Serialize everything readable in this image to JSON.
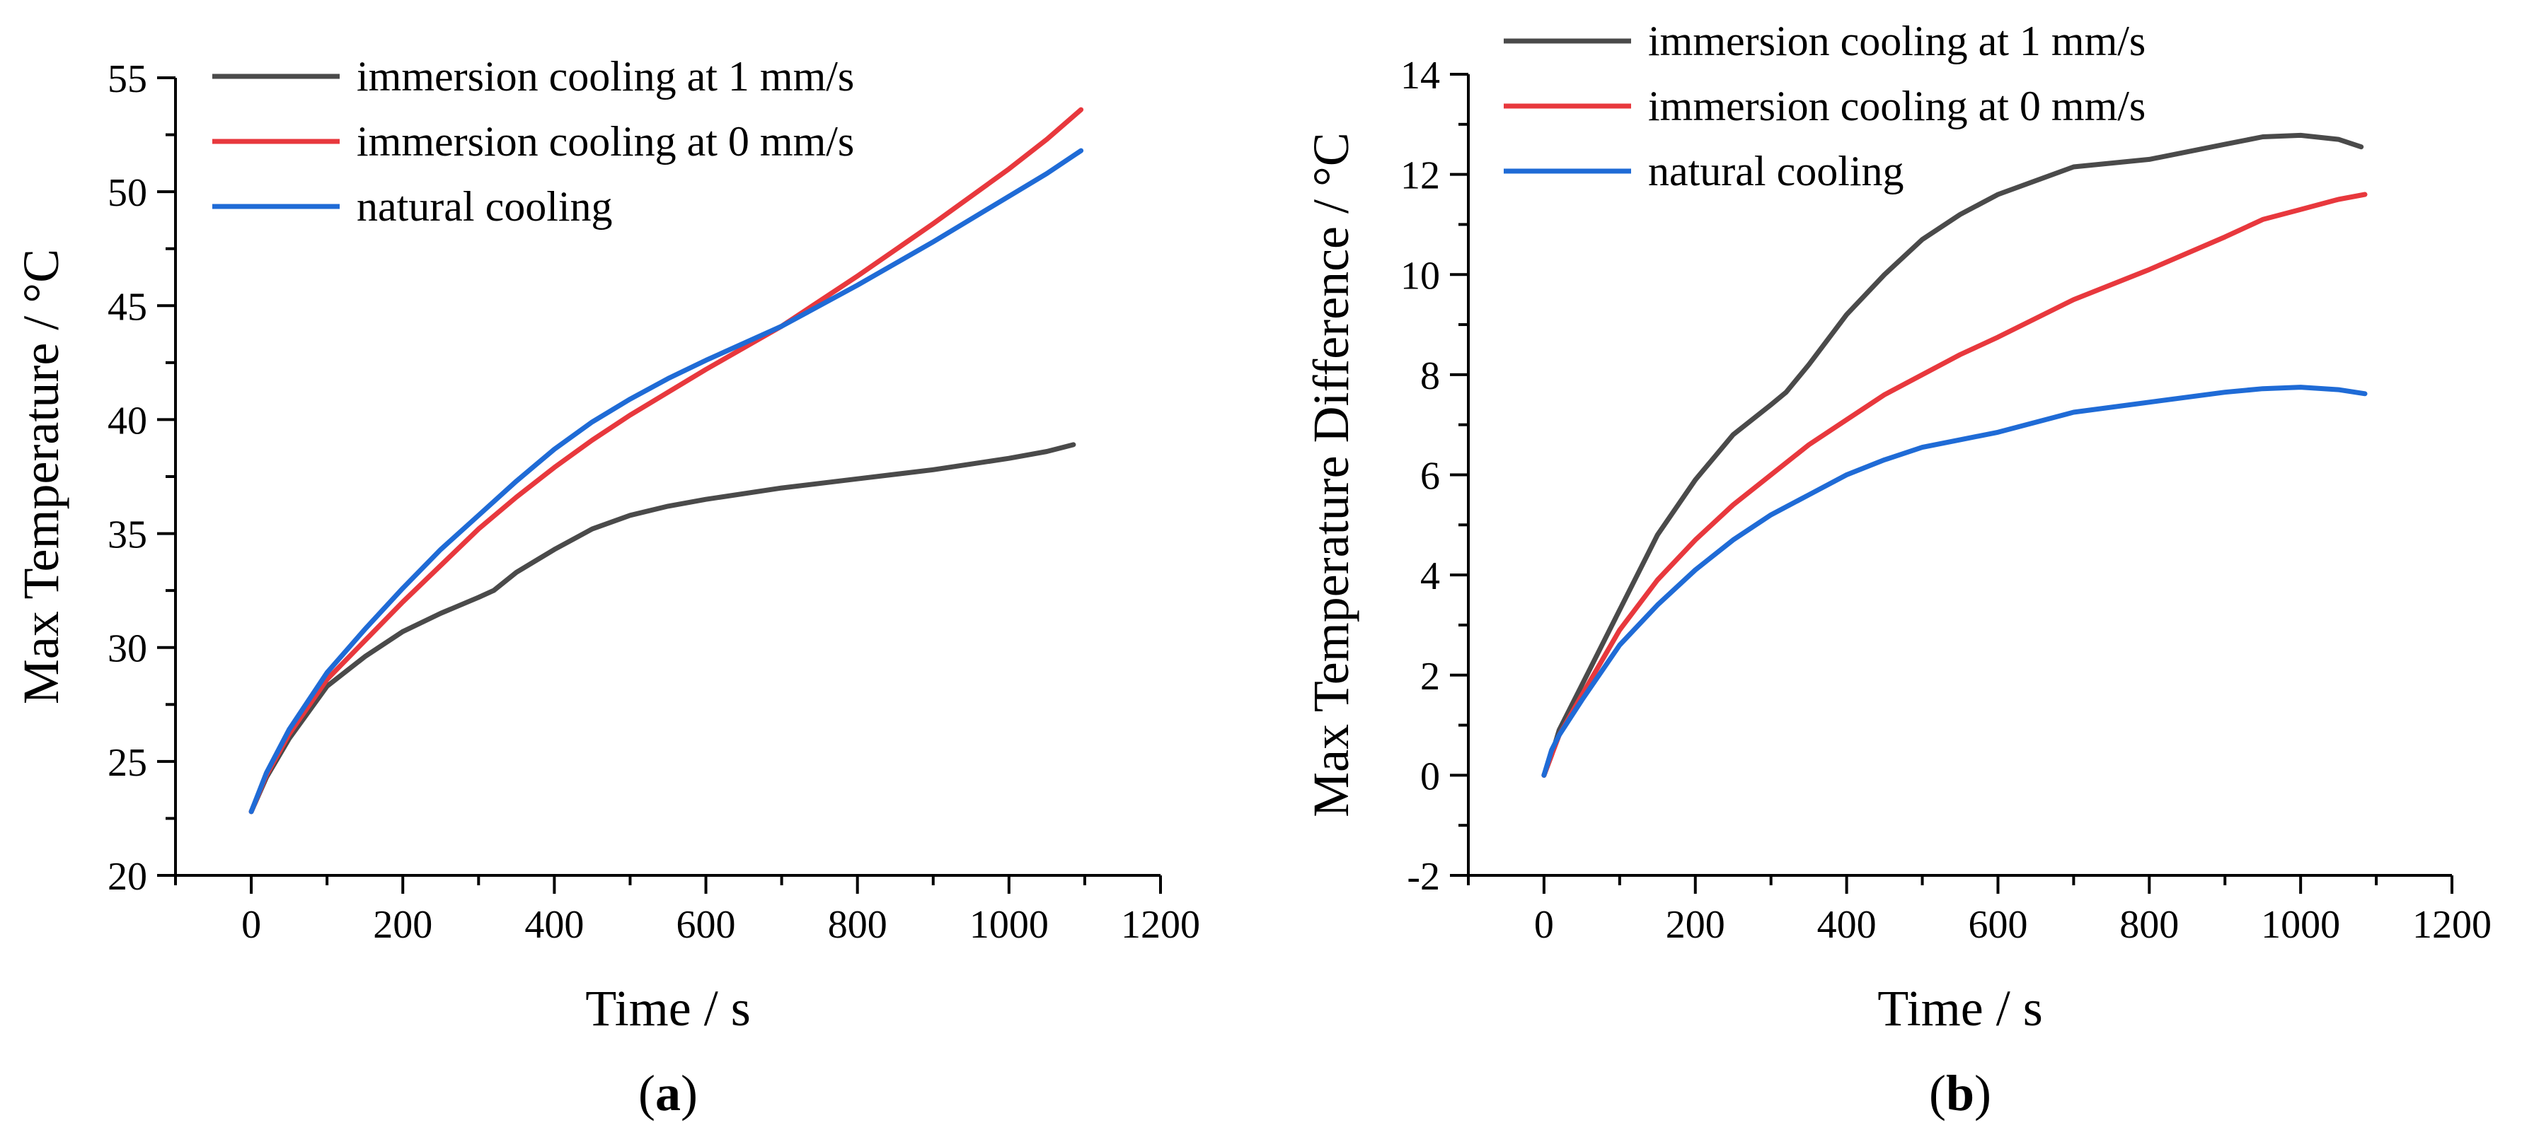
{
  "chart_data": [
    {
      "panel": "a",
      "type": "line",
      "caption_open": "(",
      "caption_letter": "a",
      "caption_close": ")",
      "xlabel": "Time / s",
      "ylabel": "Max Temperature / °C",
      "xlim": [
        -100,
        1200
      ],
      "ylim": [
        20,
        55
      ],
      "xticks": [
        0,
        200,
        400,
        600,
        800,
        1000,
        1200
      ],
      "yticks": [
        20,
        25,
        30,
        35,
        40,
        45,
        50,
        55
      ],
      "xtick_labels": [
        "0",
        "200",
        "400",
        "600",
        "800",
        "1000",
        "1200"
      ],
      "ytick_labels": [
        "20",
        "25",
        "30",
        "35",
        "40",
        "45",
        "50",
        "55"
      ],
      "legend_position": "top-left",
      "series": [
        {
          "name": "immersion cooling at 1 mm/s",
          "color": "#4a4a4a",
          "x": [
            0,
            20,
            50,
            100,
            150,
            200,
            250,
            300,
            320,
            350,
            400,
            450,
            500,
            550,
            600,
            700,
            800,
            900,
            1000,
            1050,
            1085
          ],
          "y": [
            22.8,
            24.3,
            26.0,
            28.3,
            29.6,
            30.7,
            31.5,
            32.2,
            32.5,
            33.3,
            34.3,
            35.2,
            35.8,
            36.2,
            36.5,
            37.0,
            37.4,
            37.8,
            38.3,
            38.6,
            38.9
          ]
        },
        {
          "name": "immersion cooling at 0 mm/s",
          "color": "#e8383d",
          "x": [
            0,
            20,
            50,
            100,
            150,
            200,
            250,
            300,
            350,
            400,
            450,
            500,
            550,
            600,
            700,
            800,
            900,
            1000,
            1050,
            1095
          ],
          "y": [
            22.8,
            24.4,
            26.2,
            28.6,
            30.3,
            32.0,
            33.6,
            35.2,
            36.6,
            37.9,
            39.1,
            40.2,
            41.2,
            42.2,
            44.1,
            46.3,
            48.6,
            51.0,
            52.3,
            53.6
          ]
        },
        {
          "name": "natural cooling",
          "color": "#1f6bd6",
          "x": [
            0,
            20,
            50,
            100,
            150,
            200,
            250,
            300,
            350,
            400,
            450,
            500,
            550,
            600,
            700,
            800,
            900,
            1000,
            1050,
            1095
          ],
          "y": [
            22.8,
            24.5,
            26.4,
            28.9,
            30.8,
            32.6,
            34.3,
            35.8,
            37.3,
            38.7,
            39.9,
            40.9,
            41.8,
            42.6,
            44.1,
            45.9,
            47.8,
            49.8,
            50.8,
            51.8
          ]
        }
      ]
    },
    {
      "panel": "b",
      "type": "line",
      "caption_open": "(",
      "caption_letter": "b",
      "caption_close": ")",
      "xlabel": "Time / s",
      "ylabel": "Max Temperature Difference / °C",
      "xlim": [
        -100,
        1200
      ],
      "ylim": [
        -2,
        14
      ],
      "xticks": [
        0,
        200,
        400,
        600,
        800,
        1000,
        1200
      ],
      "yticks": [
        -2,
        0,
        2,
        4,
        6,
        8,
        10,
        12,
        14
      ],
      "xtick_labels": [
        "0",
        "200",
        "400",
        "600",
        "800",
        "1000",
        "1200"
      ],
      "ytick_labels": [
        "-2",
        "0",
        "2",
        "4",
        "6",
        "8",
        "10",
        "12",
        "14"
      ],
      "legend_position": "top-left",
      "series": [
        {
          "name": "immersion cooling at 1 mm/s",
          "color": "#4a4a4a",
          "x": [
            0,
            10,
            20,
            50,
            100,
            150,
            200,
            250,
            300,
            320,
            350,
            400,
            450,
            500,
            550,
            600,
            700,
            800,
            900,
            950,
            1000,
            1050,
            1080
          ],
          "y": [
            0,
            0.4,
            0.9,
            1.8,
            3.3,
            4.8,
            5.9,
            6.8,
            7.4,
            7.65,
            8.2,
            9.2,
            10.0,
            10.7,
            11.2,
            11.6,
            12.15,
            12.3,
            12.6,
            12.75,
            12.78,
            12.7,
            12.55
          ]
        },
        {
          "name": "immersion cooling at 0 mm/s",
          "color": "#e8383d",
          "x": [
            0,
            10,
            20,
            50,
            100,
            150,
            200,
            250,
            300,
            350,
            400,
            450,
            500,
            550,
            600,
            700,
            800,
            900,
            950,
            1000,
            1050,
            1085
          ],
          "y": [
            0,
            0.4,
            0.8,
            1.6,
            2.9,
            3.9,
            4.7,
            5.4,
            6.0,
            6.6,
            7.1,
            7.6,
            8.0,
            8.4,
            8.75,
            9.5,
            10.1,
            10.75,
            11.1,
            11.3,
            11.5,
            11.6
          ]
        },
        {
          "name": "natural cooling",
          "color": "#1f6bd6",
          "x": [
            0,
            10,
            20,
            50,
            100,
            150,
            200,
            250,
            300,
            350,
            400,
            450,
            500,
            550,
            600,
            700,
            800,
            900,
            950,
            1000,
            1050,
            1085
          ],
          "y": [
            0,
            0.5,
            0.8,
            1.5,
            2.6,
            3.4,
            4.1,
            4.7,
            5.2,
            5.6,
            6.0,
            6.3,
            6.55,
            6.7,
            6.85,
            7.25,
            7.45,
            7.65,
            7.72,
            7.75,
            7.7,
            7.62
          ]
        }
      ]
    }
  ]
}
